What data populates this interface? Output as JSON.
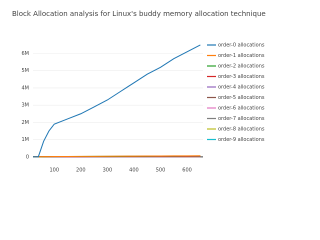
{
  "chart_data": {
    "type": "line",
    "title": "Block Allocation analysis for Linux's buddy memory allocation technique",
    "x": [
      20,
      40,
      60,
      80,
      100,
      150,
      200,
      250,
      300,
      350,
      400,
      450,
      500,
      550,
      600,
      650
    ],
    "series": [
      {
        "name": "order-0 allocations",
        "color": "#1f77b4",
        "values": [
          0,
          0,
          900000,
          1500000,
          1900000,
          2200000,
          2500000,
          2900000,
          3300000,
          3800000,
          4300000,
          4800000,
          5200000,
          5700000,
          6100000,
          6500000
        ]
      },
      {
        "name": "order-1 allocations",
        "color": "#ff7f0e",
        "values": [
          0,
          0,
          10000,
          15000,
          18000,
          22000,
          26000,
          30000,
          34000,
          38000,
          42000,
          46000,
          50000,
          54000,
          58000,
          62000
        ]
      },
      {
        "name": "order-2 allocations",
        "color": "#2ca02c",
        "values": [
          0,
          0,
          8000,
          12000,
          15000,
          18000,
          21000,
          24000,
          27000,
          30000,
          33000,
          36000,
          39000,
          42000,
          45000,
          48000
        ]
      },
      {
        "name": "order-3 allocations",
        "color": "#d62728",
        "values": [
          0,
          0,
          5000,
          8000,
          10000,
          12000,
          14000,
          16000,
          18000,
          20000,
          22000,
          24000,
          26000,
          28000,
          30000,
          32000
        ]
      },
      {
        "name": "order-4 allocations",
        "color": "#9467bd",
        "values": [
          0,
          0,
          3000,
          5000,
          6000,
          7000,
          8000,
          9000,
          10000,
          11000,
          12000,
          13000,
          14000,
          15000,
          16000,
          17000
        ]
      },
      {
        "name": "order-5 allocations",
        "color": "#8c564b",
        "values": [
          0,
          0,
          2000,
          3000,
          4000,
          5000,
          6000,
          7000,
          8000,
          9000,
          10000,
          11000,
          12000,
          13000,
          14000,
          15000
        ]
      },
      {
        "name": "order-6 allocations",
        "color": "#e377c2",
        "values": [
          0,
          0,
          1000,
          2000,
          2500,
          3000,
          3500,
          4000,
          4500,
          5000,
          5500,
          6000,
          6500,
          7000,
          7500,
          8000
        ]
      },
      {
        "name": "order-7 allocations",
        "color": "#7f7f7f",
        "values": [
          0,
          0,
          500,
          1000,
          1200,
          1500,
          1800,
          2000,
          2200,
          2500,
          2800,
          3000,
          3200,
          3500,
          3800,
          4000
        ]
      },
      {
        "name": "order-8 allocations",
        "color": "#bcbd22",
        "values": [
          0,
          0,
          300,
          500,
          600,
          700,
          800,
          900,
          1000,
          1100,
          1200,
          1300,
          1400,
          1500,
          1600,
          1700
        ]
      },
      {
        "name": "order-9 allocations",
        "color": "#17becf",
        "values": [
          0,
          0,
          100,
          200,
          300,
          400,
          500,
          600,
          700,
          800,
          900,
          1000,
          1100,
          1200,
          1300,
          1400
        ]
      }
    ],
    "xlim": [
      20,
      660
    ],
    "xticks": [
      100,
      200,
      300,
      400,
      500,
      600
    ],
    "ylim": [
      -300000,
      6900000
    ],
    "yticks": [
      0,
      {
        "value": 1000000,
        "label": "1M"
      },
      {
        "value": 2000000,
        "label": "2M"
      },
      {
        "value": 3000000,
        "label": "3M"
      },
      {
        "value": 4000000,
        "label": "4M"
      },
      {
        "value": 5000000,
        "label": "5M"
      },
      {
        "value": 6000000,
        "label": "6M"
      }
    ],
    "grid": true
  }
}
